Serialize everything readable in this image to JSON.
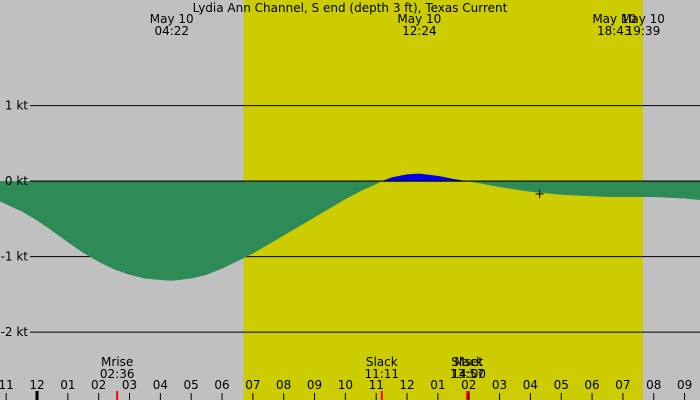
{
  "chart_data": {
    "type": "area",
    "title": "Lydia Ann Channel, S end (depth 3 ft), Texas Current",
    "xlabel": "",
    "ylabel": "",
    "ylim": [
      -2.9,
      2.4
    ],
    "xlim": [
      -1.2,
      21.5
    ],
    "y_ticks": [
      {
        "value": 1,
        "label": "1 kt"
      },
      {
        "value": 0,
        "label": "0 kt"
      },
      {
        "value": -1,
        "label": "-1 kt"
      },
      {
        "value": -2,
        "label": "-2 kt"
      }
    ],
    "x_ticks": [
      {
        "hour": -1,
        "label": "11"
      },
      {
        "hour": 0,
        "label": "12"
      },
      {
        "hour": 1,
        "label": "01"
      },
      {
        "hour": 2,
        "label": "02"
      },
      {
        "hour": 3,
        "label": "03"
      },
      {
        "hour": 4,
        "label": "04"
      },
      {
        "hour": 5,
        "label": "05"
      },
      {
        "hour": 6,
        "label": "06"
      },
      {
        "hour": 7,
        "label": "07"
      },
      {
        "hour": 8,
        "label": "08"
      },
      {
        "hour": 9,
        "label": "09"
      },
      {
        "hour": 10,
        "label": "10"
      },
      {
        "hour": 11,
        "label": "11"
      },
      {
        "hour": 12,
        "label": "12"
      },
      {
        "hour": 13,
        "label": "01"
      },
      {
        "hour": 14,
        "label": "02"
      },
      {
        "hour": 15,
        "label": "03"
      },
      {
        "hour": 16,
        "label": "04"
      },
      {
        "hour": 17,
        "label": "05"
      },
      {
        "hour": 18,
        "label": "06"
      },
      {
        "hour": 19,
        "label": "07"
      },
      {
        "hour": 20,
        "label": "08"
      },
      {
        "hour": 21,
        "label": "09"
      }
    ],
    "daylight": {
      "start_hour": 6.7,
      "end_hour": 19.65
    },
    "top_labels": [
      {
        "hour": 4.37,
        "date": "May 10",
        "time": "04:22"
      },
      {
        "hour": 12.4,
        "date": "May 10",
        "time": "12:24"
      },
      {
        "hour": 18.72,
        "date": "May 10",
        "time": "18:43"
      },
      {
        "hour": 19.65,
        "date": "May 10",
        "time": "19:39"
      }
    ],
    "bottom_events": [
      {
        "hour": 2.6,
        "name": "Mrise",
        "time": "02:36"
      },
      {
        "hour": 11.18,
        "name": "Slack",
        "time": "11:11"
      },
      {
        "hour": 13.95,
        "name": "Slack",
        "time": "13:57"
      },
      {
        "hour": 14.0,
        "name": "Mset",
        "time": "14:00"
      }
    ],
    "series": [
      {
        "x": [
          -1.2,
          -0.5,
          0,
          0.5,
          1,
          1.5,
          2,
          2.5,
          3,
          3.5,
          4,
          4.37,
          5,
          5.5,
          6,
          6.5,
          7,
          7.5,
          8,
          8.5,
          9,
          9.5,
          10,
          10.5,
          11,
          11.18,
          11.5,
          12,
          12.4,
          13,
          13.5,
          13.95,
          14.5,
          15,
          15.5,
          16,
          16.5,
          17,
          17.5,
          18,
          18.5,
          19,
          19.5,
          20,
          20.5,
          21,
          21.5
        ],
        "y": [
          -0.27,
          -0.4,
          -0.52,
          -0.66,
          -0.81,
          -0.95,
          -1.07,
          -1.17,
          -1.24,
          -1.29,
          -1.31,
          -1.32,
          -1.29,
          -1.24,
          -1.16,
          -1.06,
          -0.96,
          -0.84,
          -0.72,
          -0.6,
          -0.48,
          -0.36,
          -0.24,
          -0.13,
          -0.04,
          0,
          0.05,
          0.09,
          0.1,
          0.07,
          0.03,
          0,
          -0.04,
          -0.08,
          -0.11,
          -0.14,
          -0.16,
          -0.18,
          -0.19,
          -0.2,
          -0.21,
          -0.21,
          -0.21,
          -0.21,
          -0.22,
          -0.23,
          -0.25
        ]
      }
    ],
    "marker": {
      "hour": 16.3,
      "value": -0.17,
      "symbol": "+"
    },
    "colors": {
      "background": "#c0c0c0",
      "daylight": "#cccc00",
      "ebb": "#2e8b57",
      "flood": "#0000ee",
      "gridline": "#000000",
      "event_tick": "#ff0000",
      "midnight_tick": "#000000"
    },
    "grid": true
  }
}
